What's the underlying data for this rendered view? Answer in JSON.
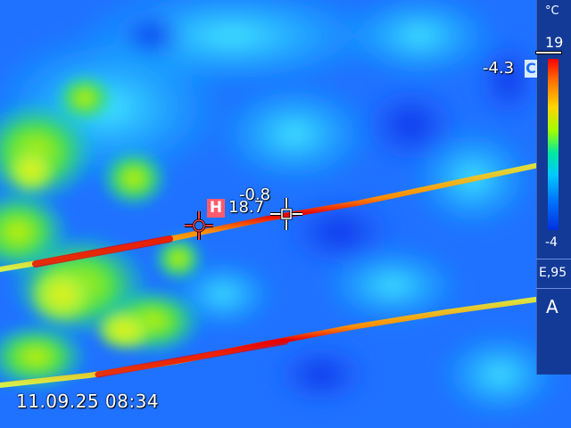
{
  "overlay": {
    "timestamp": "11.09.25 08:34",
    "hot_spot": {
      "badge": "H",
      "value": "18.7"
    },
    "center_spot": {
      "value": "-0.8"
    },
    "cold_spot": {
      "value": "-4.3",
      "badge": "C"
    }
  },
  "scale": {
    "unit": "°C",
    "max": "19",
    "min": "-4",
    "emissivity": "E,95",
    "mode": "A"
  },
  "colors": {
    "hot_badge": "#ff5a6e",
    "cold_badge": "#d9ecff",
    "panel": "#123a96"
  },
  "icons": [
    "hot-spot-crosshair-icon",
    "center-spot-crosshair-icon",
    "max-marker-icon"
  ]
}
